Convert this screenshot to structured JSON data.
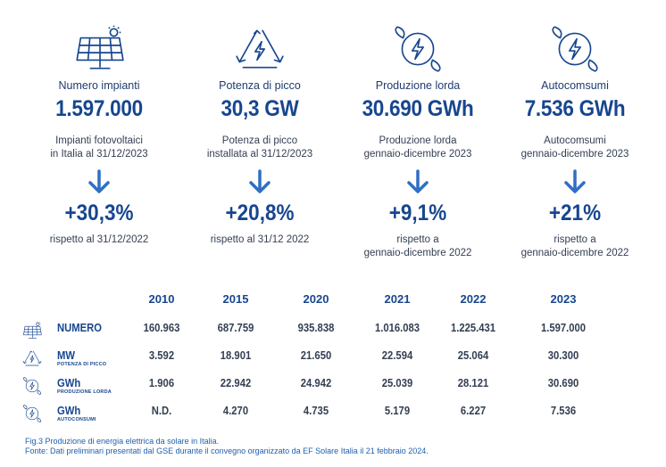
{
  "kpis": [
    {
      "icon": "solar-panel-icon",
      "title": "Numero impianti",
      "value": "1.597.000",
      "desc": "Impianti fotovoltaici\nin Italia al 31/12/2023",
      "change": "+30,3%",
      "change_desc": "rispetto al 31/12/2022"
    },
    {
      "icon": "energy-triangle-icon",
      "title": "Potenza di picco",
      "value": "30,3 GW",
      "desc": "Potenza di picco\ninstallata al 31/12/2023",
      "change": "+20,8%",
      "change_desc": "rispetto al 31/12 2022"
    },
    {
      "icon": "leaf-bolt-icon",
      "title": "Produzione lorda",
      "value": "30.690 GWh",
      "desc": "Produzione lorda\ngennaio-dicembre 2023",
      "change": "+9,1%",
      "change_desc": "rispetto a\ngennaio-dicembre 2022"
    },
    {
      "icon": "leaf-bolt-icon",
      "title": "Autocomsumi",
      "value": "7.536 GWh",
      "desc": "Autocomsumi\ngennaio-dicembre 2023",
      "change": "+21%",
      "change_desc": "rispetto a\ngennaio-dicembre 2022"
    }
  ],
  "table": {
    "years": [
      "2010",
      "2015",
      "2020",
      "2021",
      "2022",
      "2023"
    ],
    "rows": [
      {
        "icon": "solar-panel-icon",
        "label": "NUMERO",
        "sub": "",
        "values": [
          "160.963",
          "687.759",
          "935.838",
          "1.016.083",
          "1.225.431",
          "1.597.000"
        ]
      },
      {
        "icon": "energy-triangle-icon",
        "label": "MW",
        "sub": "POTENZA DI PICCO",
        "values": [
          "3.592",
          "18.901",
          "21.650",
          "22.594",
          "25.064",
          "30.300"
        ]
      },
      {
        "icon": "leaf-bolt-icon",
        "label": "GWh",
        "sub": "PRODUZIONE LORDA",
        "values": [
          "1.906",
          "22.942",
          "24.942",
          "25.039",
          "28.121",
          "30.690"
        ]
      },
      {
        "icon": "leaf-bolt-icon",
        "label": "GWh",
        "sub": "AUTOCONSUMI",
        "values": [
          "N.D.",
          "4.270",
          "4.735",
          "5.179",
          "6.227",
          "7.536"
        ]
      }
    ]
  },
  "caption": {
    "line1": "Fig.3 Produzione di energia elettrica da solare in Italia.",
    "line2": "Fonte: Dati preliminari presentati dal GSE durante il convegno organizzato da EF Solare Italia il 21 febbraio 2024."
  },
  "colors": {
    "primary": "#17468f",
    "text": "#333f52",
    "arrow": "#2f6fc4",
    "caption": "#1f5fae"
  }
}
